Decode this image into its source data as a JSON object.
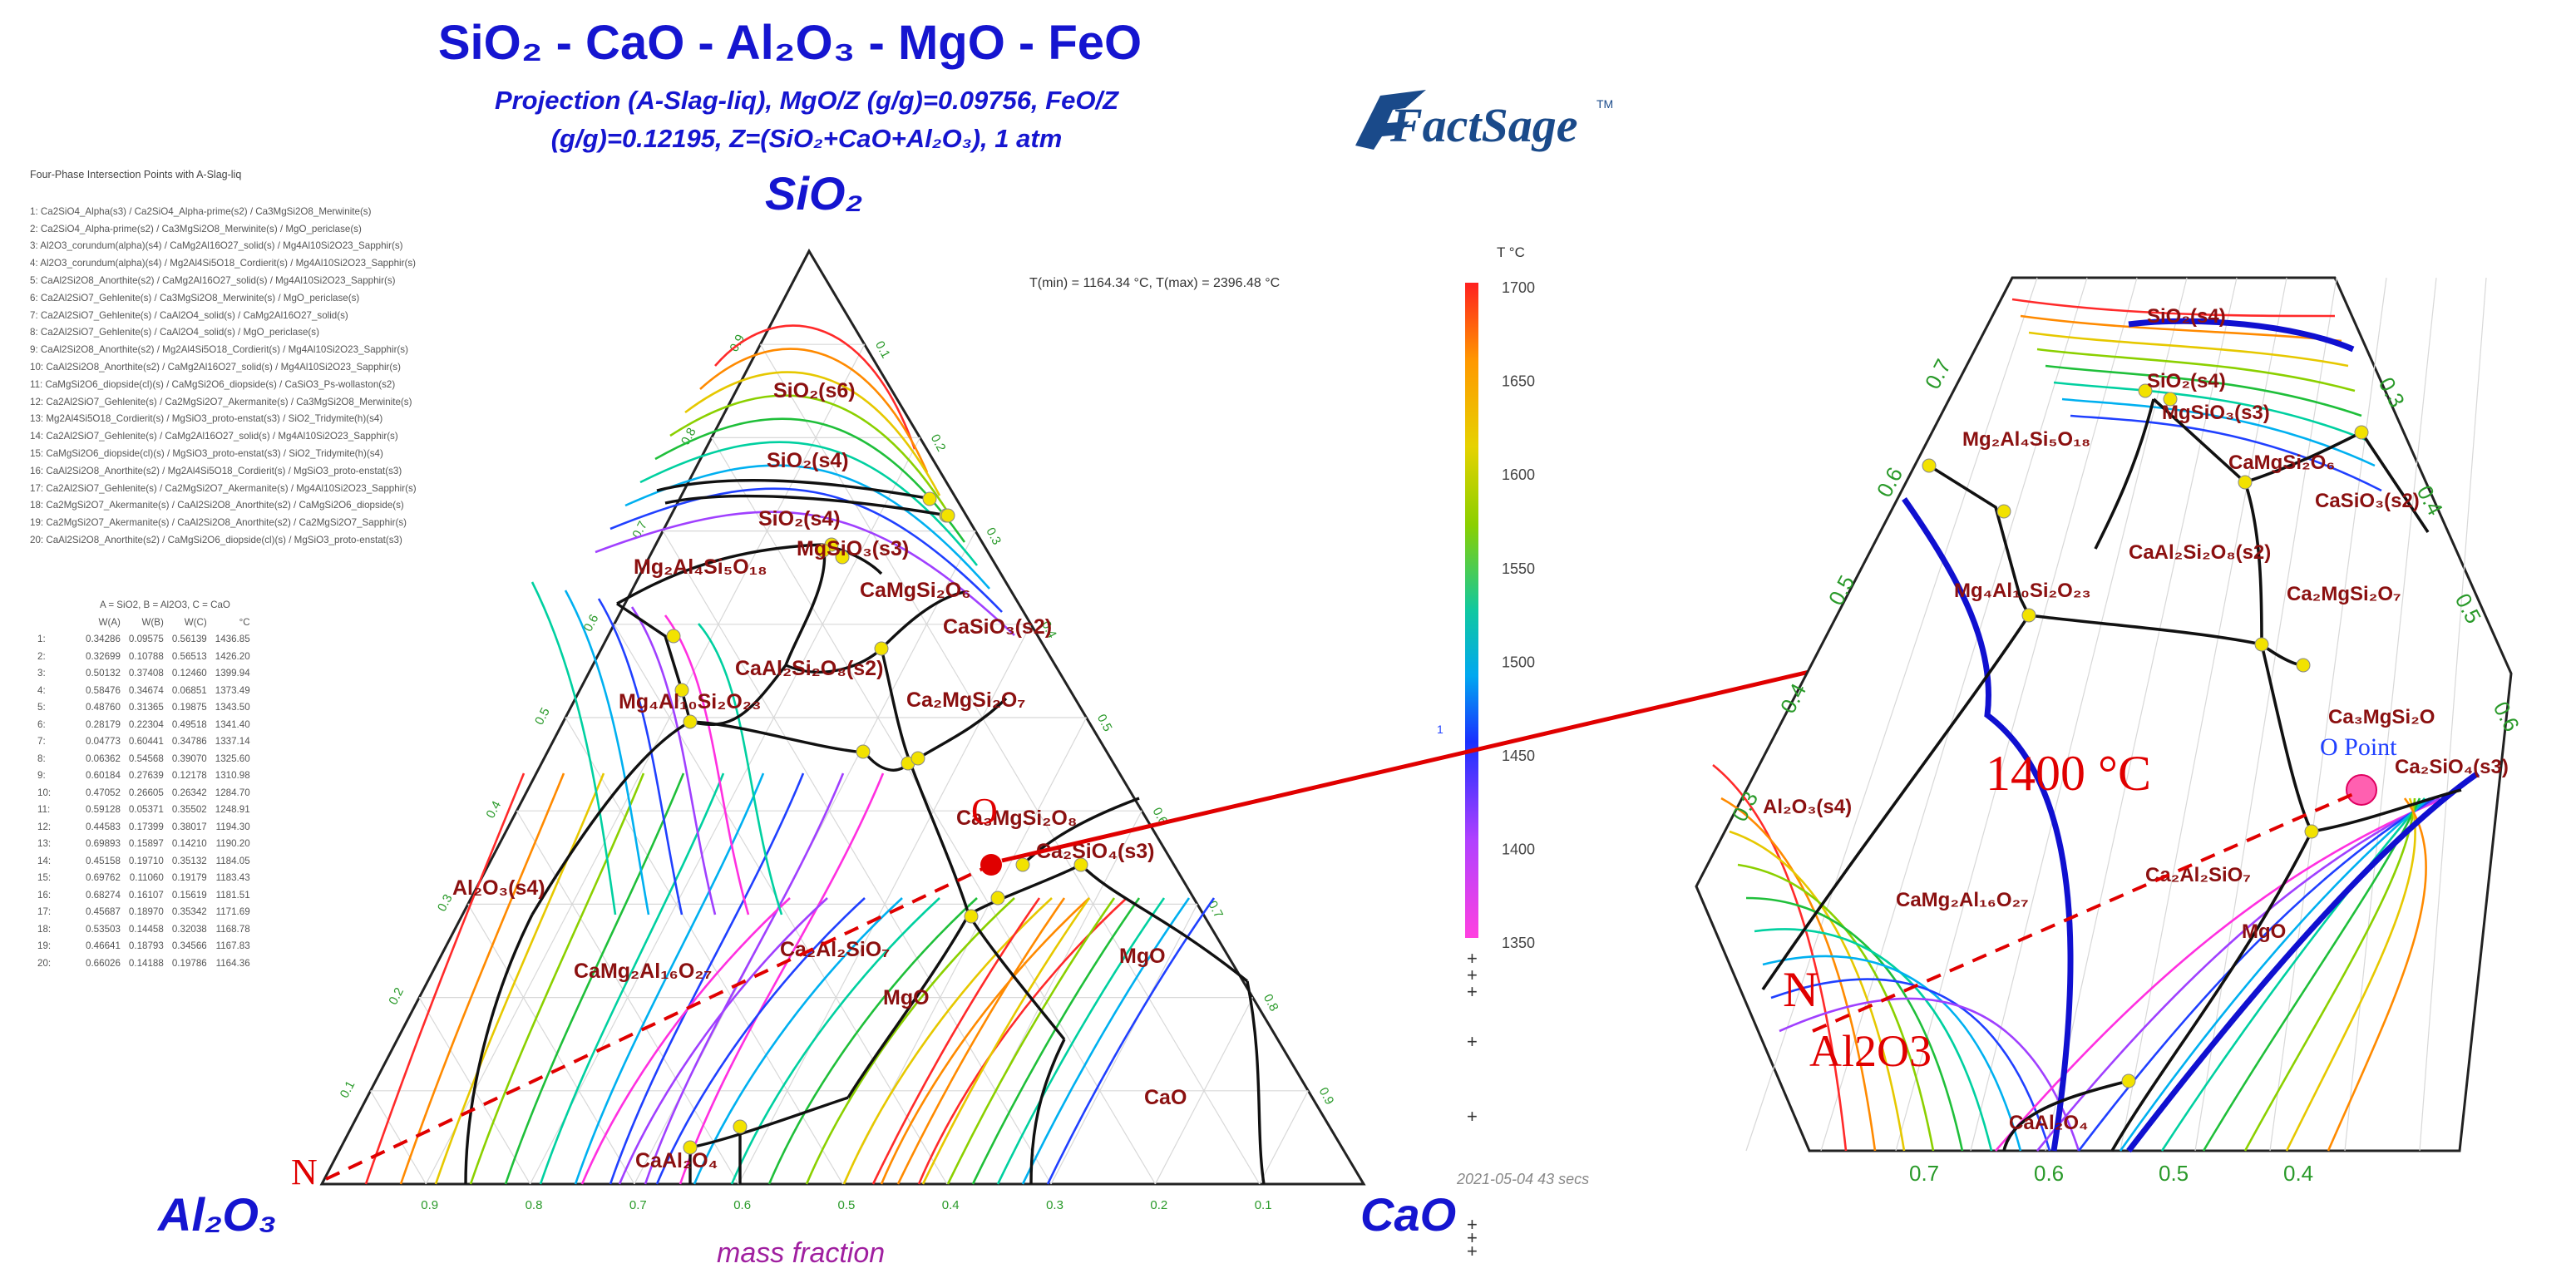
{
  "header": {
    "title": "SiO₂ - CaO - Al₂O₃ - MgO - FeO",
    "subtitle_line1": "Projection (A-Slag-liq), MgO/Z (g/g)=0.09756, FeO/Z",
    "subtitle_line2": "(g/g)=0.12195, Z=(SiO₂+CaO+Al₂O₃), 1 atm",
    "logo_text": "FactSage",
    "logo_tm": "TM"
  },
  "list": {
    "title": "Four-Phase Intersection Points with A-Slag-liq",
    "items": [
      "1:   Ca2SiO4_Alpha(s3) / Ca2SiO4_Alpha-prime(s2) / Ca3MgSi2O8_Merwinite(s)",
      "2:   Ca2SiO4_Alpha-prime(s2) / Ca3MgSi2O8_Merwinite(s) / MgO_periclase(s)",
      "3:   Al2O3_corundum(alpha)(s4) / CaMg2Al16O27_solid(s) / Mg4Al10Si2O23_Sapphir(s)",
      "4:   Al2O3_corundum(alpha)(s4) / Mg2Al4Si5O18_Cordierit(s) / Mg4Al10Si2O23_Sapphir(s)",
      "5:   CaAl2Si2O8_Anorthite(s2) / CaMg2Al16O27_solid(s) / Mg4Al10Si2O23_Sapphir(s)",
      "6:   Ca2Al2SiO7_Gehlenite(s) / Ca3MgSi2O8_Merwinite(s) / MgO_periclase(s)",
      "7:   Ca2Al2SiO7_Gehlenite(s) / CaAl2O4_solid(s) / CaMg2Al16O27_solid(s)",
      "8:   Ca2Al2SiO7_Gehlenite(s) / CaAl2O4_solid(s) / MgO_periclase(s)",
      "9:   CaAl2Si2O8_Anorthite(s2) / Mg2Al4Si5O18_Cordierit(s) / Mg4Al10Si2O23_Sapphir(s)",
      "10:  CaAl2Si2O8_Anorthite(s2) / CaMg2Al16O27_solid(s) / Mg4Al10Si2O23_Sapphir(s)",
      "11:  CaMgSi2O6_diopside(cl)(s) / CaMgSi2O6_diopside(s) / CaSiO3_Ps-wollaston(s2)",
      "12:  Ca2Al2SiO7_Gehlenite(s) / Ca2MgSi2O7_Akermanite(s) / Ca3MgSi2O8_Merwinite(s)",
      "13:  Mg2Al4Si5O18_Cordierit(s) / MgSiO3_proto-enstat(s3) / SiO2_Tridymite(h)(s4)",
      "14:  Ca2Al2SiO7_Gehlenite(s) / CaMg2Al16O27_solid(s) / Mg4Al10Si2O23_Sapphir(s)",
      "15:  CaMgSi2O6_diopside(cl)(s) / MgSiO3_proto-enstat(s3) / SiO2_Tridymite(h)(s4)",
      "16:  CaAl2Si2O8_Anorthite(s2) / Mg2Al4Si5O18_Cordierit(s) / MgSiO3_proto-enstat(s3)",
      "17:  Ca2Al2SiO7_Gehlenite(s) / Ca2MgSi2O7_Akermanite(s) / Mg4Al10Si2O23_Sapphir(s)",
      "18:  Ca2MgSi2O7_Akermanite(s) / CaAl2Si2O8_Anorthite(s2) / CaMgSi2O6_diopside(s)",
      "19:  Ca2MgSi2O7_Akermanite(s) / CaAl2Si2O8_Anorthite(s2) / Ca2MgSi2O7_Sapphir(s)",
      "20:  CaAl2Si2O8_Anorthite(s2) / CaMgSi2O6_diopside(cl)(s) / MgSiO3_proto-enstat(s3)"
    ]
  },
  "table": {
    "header": "A = SiO2,  B = Al2O3,  C = CaO",
    "columns": [
      "W(A)",
      "W(B)",
      "W(C)",
      "°C"
    ],
    "rows": [
      [
        "1:",
        "0.34286",
        "0.09575",
        "0.56139",
        "1436.85"
      ],
      [
        "2:",
        "0.32699",
        "0.10788",
        "0.56513",
        "1426.20"
      ],
      [
        "3:",
        "0.50132",
        "0.37408",
        "0.12460",
        "1399.94"
      ],
      [
        "4:",
        "0.58476",
        "0.34674",
        "0.06851",
        "1373.49"
      ],
      [
        "5:",
        "0.48760",
        "0.31365",
        "0.19875",
        "1343.50"
      ],
      [
        "6:",
        "0.28179",
        "0.22304",
        "0.49518",
        "1341.40"
      ],
      [
        "7:",
        "0.04773",
        "0.60441",
        "0.34786",
        "1337.14"
      ],
      [
        "8:",
        "0.06362",
        "0.54568",
        "0.39070",
        "1325.60"
      ],
      [
        "9:",
        "0.60184",
        "0.27639",
        "0.12178",
        "1310.98"
      ],
      [
        "10:",
        "0.47052",
        "0.26605",
        "0.26342",
        "1284.70"
      ],
      [
        "11:",
        "0.59128",
        "0.05371",
        "0.35502",
        "1248.91"
      ],
      [
        "12:",
        "0.44583",
        "0.17399",
        "0.38017",
        "1194.30"
      ],
      [
        "13:",
        "0.69893",
        "0.15897",
        "0.14210",
        "1190.20"
      ],
      [
        "14:",
        "0.45158",
        "0.19710",
        "0.35132",
        "1184.05"
      ],
      [
        "15:",
        "0.69762",
        "0.11060",
        "0.19179",
        "1183.43"
      ],
      [
        "16:",
        "0.68274",
        "0.16107",
        "0.15619",
        "1181.51"
      ],
      [
        "17:",
        "0.45687",
        "0.18970",
        "0.35342",
        "1171.69"
      ],
      [
        "18:",
        "0.53503",
        "0.14458",
        "0.32038",
        "1168.78"
      ],
      [
        "19:",
        "0.46641",
        "0.18793",
        "0.34566",
        "1167.83"
      ],
      [
        "20:",
        "0.66026",
        "0.14188",
        "0.19786",
        "1164.36"
      ]
    ]
  },
  "diagram": {
    "apex_top": "SiO₂",
    "apex_left": "Al₂O₃",
    "apex_right": "CaO",
    "trange": "T(min) = 1164.34 °C,  T(max) = 2396.48 °C",
    "axis_caption": "mass fraction",
    "datestamp": "2021-05-04  43 secs",
    "legend_unit": "T °C",
    "legend_ticks": [
      "1700",
      "1650",
      "1600",
      "1550",
      "1500",
      "1450",
      "1400",
      "1350"
    ],
    "legend_one": "1",
    "bottom_ticks": [
      "0.9",
      "0.8",
      "0.7",
      "0.6",
      "0.5",
      "0.4",
      "0.3",
      "0.2",
      "0.1"
    ],
    "left_ticks": [
      "0.1",
      "0.2",
      "0.3",
      "0.4",
      "0.5",
      "0.6",
      "0.7",
      "0.8",
      "0.9"
    ],
    "right_ticks": [
      "0.9",
      "0.8",
      "0.7",
      "0.6",
      "0.5",
      "0.4",
      "0.3",
      "0.2",
      "0.1"
    ],
    "phase_labels": {
      "sio2_s6": "SiO₂(s6)",
      "sio2_s4_a": "SiO₂(s4)",
      "sio2_s4_b": "SiO₂(s4)",
      "mgsio3_s3": "MgSiO₃(s3)",
      "mg2al4si5o18": "Mg₂Al₄Si₅O₁₈",
      "camgsi2o6": "CaMgSi₂O₆",
      "casio3_s2": "CaSiO₃(s2)",
      "caal2si2o8": "CaAl₂Si₂O₈(s2)",
      "ca2mgsi2o7": "Ca₂MgSi₂O₇",
      "mg4al10si2o23": "Mg₄Al₁₀Si₂O₂₃",
      "ca3mgsi2o8": "Ca₃MgSi₂O₈",
      "ca2sio4_s3": "Ca₂SiO₄(s3)",
      "al2o3_s4": "Al₂O₃(s4)",
      "camg2al16o27": "CaMg₂Al₁₆O₂₇",
      "ca2al2sio7": "Ca₂Al₂SiO₇",
      "mgo_a": "MgO",
      "mgo_b": "MgO",
      "cao": "CaO",
      "caal2o4": "CaAl₂O₄"
    },
    "point_n": "N",
    "point_o": "O"
  },
  "zoom": {
    "temperature": "1400 °C",
    "o_point": "O Point",
    "n_label": "N",
    "al2o3_label": "Al2O3",
    "bottom_ticks": [
      "0.7",
      "0.6",
      "0.5",
      "0.4"
    ],
    "left_ticks": [
      "0.7",
      "0.6",
      "0.5",
      "0.4",
      "0.3"
    ],
    "right_ticks": [
      "0.3",
      "0.4",
      "0.5",
      "0.6"
    ],
    "phase_labels": {
      "sio2_s4_top": "SiO₂(s4)",
      "sio2_s4": "SiO₂(s4)",
      "mgsio3_s3": "MgSiO₃(s3)",
      "mg2al4si5o18": "Mg₂Al₄Si₅O₁₈",
      "camgsi2o6": "CaMgSi₂O₆",
      "casio3_s2": "CaSiO₃(s2)",
      "caal2si2o8": "CaAl₂Si₂O₈(s2)",
      "mg4al10si2o23": "Mg₄Al₁₀Si₂O₂₃",
      "ca2mgsi2o7": "Ca₂MgSi₂O₇",
      "ca3mgsi2o8": "Ca₃MgSi₂O",
      "ca2sio4": "Ca₂SiO₄(s3)",
      "al2o3_s4": "Al₂O₃(s4)",
      "camg2al16o27": "CaMg₂Al₁₆O₂₇",
      "ca2al2sio7": "Ca₂Al₂SiO₇",
      "mgo": "MgO",
      "caal2o4": "CaAl₂O₄"
    }
  },
  "colors": {
    "title": "#1515d0",
    "phase_label": "#8b1010",
    "boundary": "#111111",
    "intersection_point": "#f2e200",
    "red_marker": "#e00000",
    "tick_green": "#2a9a2a",
    "zoom_temp": "#e00000"
  }
}
